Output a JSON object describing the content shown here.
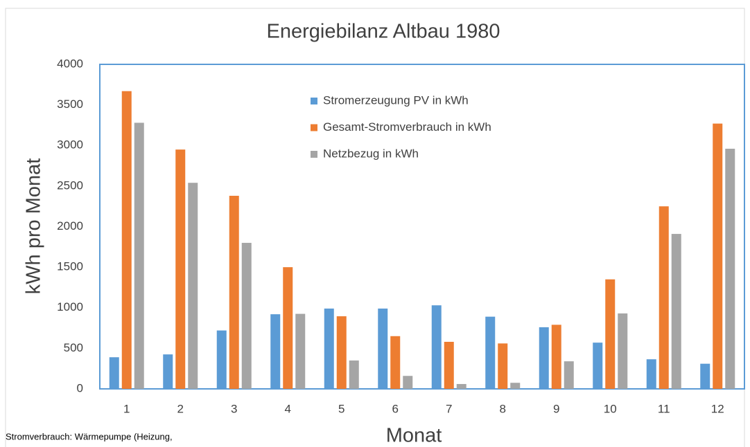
{
  "chart_data": {
    "type": "bar",
    "title": "Energiebilanz Altbau 1980",
    "x_label": "Monat",
    "y_label": "kWh pro Monat",
    "note": "Stromverbrauch: Wärmepumpe (Heizung,",
    "categories": [
      "1",
      "2",
      "3",
      "4",
      "5",
      "6",
      "7",
      "8",
      "9",
      "10",
      "11",
      "12"
    ],
    "series": [
      {
        "name": "Stromerzeugung PV in kWh",
        "color": "#5b9bd5",
        "values": [
          390,
          425,
          720,
          920,
          990,
          990,
          1030,
          890,
          760,
          570,
          365,
          310
        ]
      },
      {
        "name": "Gesamt-Stromverbrauch in kWh",
        "color": "#ed7d31",
        "values": [
          3670,
          2950,
          2380,
          1500,
          895,
          650,
          580,
          560,
          790,
          1350,
          2250,
          3270
        ]
      },
      {
        "name": "Netzbezug in kWh",
        "color": "#a5a5a5",
        "values": [
          3280,
          2540,
          1800,
          925,
          350,
          160,
          60,
          75,
          340,
          930,
          1910,
          2960
        ]
      }
    ],
    "ylim": [
      0,
      4000
    ],
    "yticks": [
      0,
      500,
      1000,
      1500,
      2000,
      2500,
      3000,
      3500,
      4000
    ],
    "grid": false
  }
}
